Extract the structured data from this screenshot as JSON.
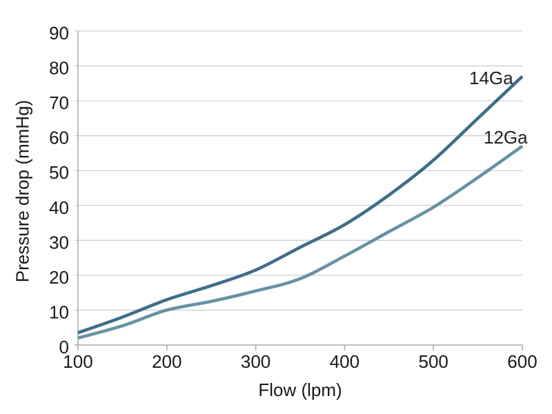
{
  "chart_data": {
    "type": "line",
    "title": "",
    "xlabel": "Flow (lpm)",
    "ylabel": "Pressure drop (mmHg)",
    "xlim": [
      100,
      600
    ],
    "ylim": [
      0,
      90
    ],
    "x_ticks": [
      100,
      200,
      300,
      400,
      500,
      600
    ],
    "y_ticks": [
      0,
      10,
      20,
      30,
      40,
      50,
      60,
      70,
      80,
      90
    ],
    "grid": "horizontal-only",
    "legend_position": "inline-end-of-line-labels",
    "x": [
      100,
      150,
      200,
      250,
      300,
      350,
      400,
      450,
      500,
      550,
      600
    ],
    "series": [
      {
        "name": "14Ga",
        "color": "#3e6e87",
        "values": [
          3.5,
          8,
          13,
          17,
          21.5,
          28,
          34.5,
          43,
          53,
          65,
          77
        ]
      },
      {
        "name": "12Ga",
        "color": "#6793a2",
        "values": [
          2,
          5.5,
          10,
          12.5,
          15.5,
          19,
          25.5,
          32.5,
          39.5,
          48,
          57
        ]
      }
    ],
    "colors": {
      "gridline": "#c8d0da",
      "axis": "#a5abb2",
      "text": "#1a1a1a",
      "background": "#ffffff"
    }
  }
}
